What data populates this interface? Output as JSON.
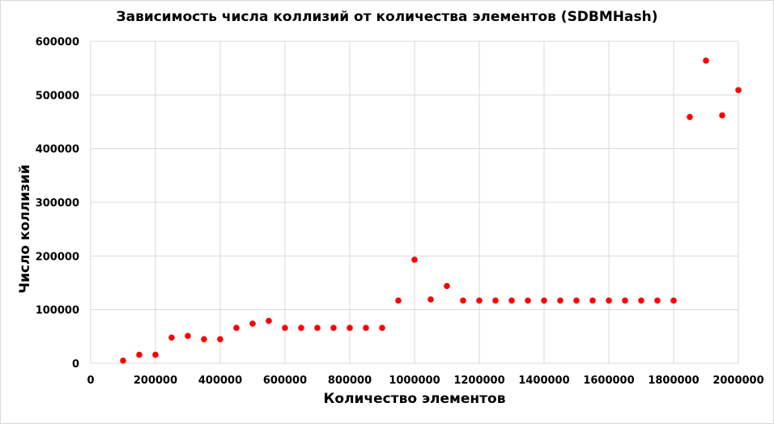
{
  "chart_data": {
    "type": "scatter",
    "title": "Зависимость числа коллизий от количества элементов (SDBMHash)",
    "xlabel": "Количество элементов",
    "ylabel": "Число коллизий",
    "xlim": [
      0,
      2000000
    ],
    "ylim": [
      0,
      600000
    ],
    "xticks": [
      "0",
      "200000",
      "400000",
      "600000",
      "800000",
      "1000000",
      "1200000",
      "1400000",
      "1600000",
      "1800000",
      "2000000"
    ],
    "yticks": [
      "0",
      "100000",
      "200000",
      "300000",
      "400000",
      "500000",
      "600000"
    ],
    "grid": true,
    "marker_color": "#ff0000",
    "series": [
      {
        "x": [
          100000,
          150000,
          200000,
          250000,
          300000,
          350000,
          400000,
          450000,
          500000,
          550000,
          600000,
          650000,
          700000,
          750000,
          800000,
          850000,
          900000,
          950000,
          1000000,
          1050000,
          1100000,
          1150000,
          1200000,
          1250000,
          1300000,
          1350000,
          1400000,
          1450000,
          1500000,
          1550000,
          1600000,
          1650000,
          1700000,
          1750000,
          1800000,
          1850000,
          1900000,
          1950000,
          2000000
        ],
        "y": [
          5000,
          16000,
          16000,
          48000,
          51000,
          45000,
          45000,
          66000,
          74000,
          79000,
          66000,
          66000,
          66000,
          66000,
          66000,
          66000,
          66000,
          117000,
          193000,
          119000,
          144000,
          117000,
          117000,
          117000,
          117000,
          117000,
          117000,
          117000,
          117000,
          117000,
          117000,
          117000,
          117000,
          117000,
          117000,
          459000,
          564000,
          462000,
          509000
        ]
      }
    ]
  }
}
